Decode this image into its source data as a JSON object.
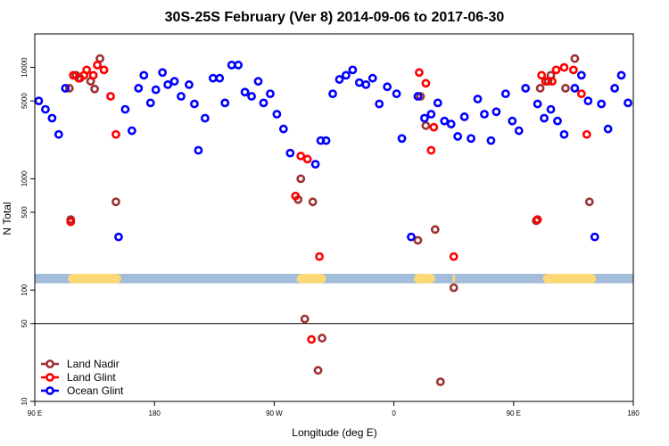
{
  "chart_data": {
    "type": "scatter",
    "title": "30S-25S February (Ver 8)   2014-09-06 to 2017-06-30",
    "xlabel": "Longitude (deg E)",
    "ylabel": "N Total",
    "xlim": [
      90,
      540
    ],
    "y_scale": "log",
    "ylim": [
      10,
      20000
    ],
    "x_ticks": [
      {
        "value": 90,
        "label": "90 E"
      },
      {
        "value": 180,
        "label": "180"
      },
      {
        "value": 270,
        "label": "90 W"
      },
      {
        "value": 360,
        "label": "0"
      },
      {
        "value": 450,
        "label": "90 E"
      },
      {
        "value": 540,
        "label": "180"
      }
    ],
    "y_ticks": [
      {
        "value": 10,
        "label": "10"
      },
      {
        "value": 50,
        "label": "50"
      },
      {
        "value": 100,
        "label": "100"
      },
      {
        "value": 500,
        "label": "500"
      },
      {
        "value": 1000,
        "label": "1000"
      },
      {
        "value": 5000,
        "label": "5000"
      },
      {
        "value": 10000,
        "label": "10000"
      }
    ],
    "reference_line": 50,
    "land_band": {
      "y_range": [
        115,
        140
      ],
      "ocean_color": "#a3bcd9",
      "land_color": "#fcd877",
      "land_segments": [
        [
          115,
          155
        ],
        [
          287,
          309
        ],
        [
          375,
          391
        ],
        [
          404,
          406
        ],
        [
          472,
          512
        ]
      ]
    },
    "legend_position": "bottom-left",
    "series": [
      {
        "name": "Land Nadir",
        "color": "#9e3232",
        "points": [
          [
            116,
            6500
          ],
          [
            117,
            430
          ],
          [
            121,
            8500
          ],
          [
            124,
            8000
          ],
          [
            132,
            7500
          ],
          [
            135,
            6400
          ],
          [
            139,
            12000
          ],
          [
            151,
            620
          ],
          [
            288,
            650
          ],
          [
            290,
            1000
          ],
          [
            293,
            55
          ],
          [
            299,
            620
          ],
          [
            303,
            19
          ],
          [
            306,
            37
          ],
          [
            378,
            280
          ],
          [
            380,
            5500
          ],
          [
            384,
            3000
          ],
          [
            391,
            350
          ],
          [
            395,
            15
          ],
          [
            405,
            105
          ],
          [
            467,
            420
          ],
          [
            470,
            6500
          ],
          [
            476,
            7500
          ],
          [
            478,
            8500
          ],
          [
            489,
            6500
          ],
          [
            496,
            12000
          ],
          [
            507,
            620
          ]
        ]
      },
      {
        "name": "Land Glint",
        "color": "#ff0000",
        "points": [
          [
            117,
            410
          ],
          [
            119,
            8500
          ],
          [
            123,
            8000
          ],
          [
            127,
            8500
          ],
          [
            129,
            9500
          ],
          [
            134,
            8500
          ],
          [
            137,
            10500
          ],
          [
            142,
            9500
          ],
          [
            147,
            5500
          ],
          [
            151,
            2500
          ],
          [
            286,
            700
          ],
          [
            290,
            1600
          ],
          [
            295,
            1500
          ],
          [
            298,
            36
          ],
          [
            304,
            200
          ],
          [
            379,
            9000
          ],
          [
            384,
            7200
          ],
          [
            388,
            1800
          ],
          [
            390,
            2900
          ],
          [
            405,
            200
          ],
          [
            468,
            430
          ],
          [
            471,
            8500
          ],
          [
            474,
            7500
          ],
          [
            479,
            7500
          ],
          [
            482,
            9500
          ],
          [
            488,
            10000
          ],
          [
            495,
            9500
          ],
          [
            501,
            5800
          ],
          [
            505,
            2500
          ]
        ]
      },
      {
        "name": "Ocean Glint",
        "color": "#0000ff",
        "points": [
          [
            93,
            5000
          ],
          [
            98,
            4200
          ],
          [
            103,
            3500
          ],
          [
            108,
            2500
          ],
          [
            113,
            6500
          ],
          [
            153,
            300
          ],
          [
            158,
            4200
          ],
          [
            163,
            2700
          ],
          [
            168,
            6500
          ],
          [
            172,
            8500
          ],
          [
            177,
            4800
          ],
          [
            181,
            6300
          ],
          [
            186,
            9000
          ],
          [
            190,
            7000
          ],
          [
            195,
            7500
          ],
          [
            200,
            5500
          ],
          [
            206,
            7000
          ],
          [
            210,
            4700
          ],
          [
            213,
            1800
          ],
          [
            218,
            3500
          ],
          [
            224,
            8000
          ],
          [
            229,
            8000
          ],
          [
            233,
            4800
          ],
          [
            238,
            10500
          ],
          [
            243,
            10500
          ],
          [
            248,
            6000
          ],
          [
            253,
            5500
          ],
          [
            258,
            7500
          ],
          [
            262,
            4800
          ],
          [
            267,
            5800
          ],
          [
            272,
            3800
          ],
          [
            277,
            2800
          ],
          [
            282,
            1700
          ],
          [
            301,
            1350
          ],
          [
            305,
            2200
          ],
          [
            309,
            2200
          ],
          [
            314,
            5800
          ],
          [
            319,
            7800
          ],
          [
            324,
            8500
          ],
          [
            329,
            9500
          ],
          [
            334,
            7300
          ],
          [
            339,
            7000
          ],
          [
            344,
            8000
          ],
          [
            349,
            4700
          ],
          [
            355,
            6700
          ],
          [
            362,
            5800
          ],
          [
            366,
            2300
          ],
          [
            373,
            300
          ],
          [
            378,
            5500
          ],
          [
            383,
            3500
          ],
          [
            388,
            3800
          ],
          [
            393,
            4800
          ],
          [
            398,
            3300
          ],
          [
            403,
            3100
          ],
          [
            408,
            2400
          ],
          [
            413,
            3600
          ],
          [
            418,
            2300
          ],
          [
            423,
            5200
          ],
          [
            428,
            3800
          ],
          [
            433,
            2200
          ],
          [
            437,
            4000
          ],
          [
            444,
            5800
          ],
          [
            449,
            3300
          ],
          [
            454,
            2700
          ],
          [
            459,
            6500
          ],
          [
            468,
            4700
          ],
          [
            473,
            3500
          ],
          [
            478,
            4200
          ],
          [
            483,
            3300
          ],
          [
            488,
            2500
          ],
          [
            496,
            6500
          ],
          [
            501,
            8500
          ],
          [
            506,
            5000
          ],
          [
            511,
            300
          ],
          [
            516,
            4700
          ],
          [
            521,
            2800
          ],
          [
            526,
            6500
          ],
          [
            531,
            8500
          ],
          [
            536,
            4800
          ]
        ]
      }
    ]
  }
}
